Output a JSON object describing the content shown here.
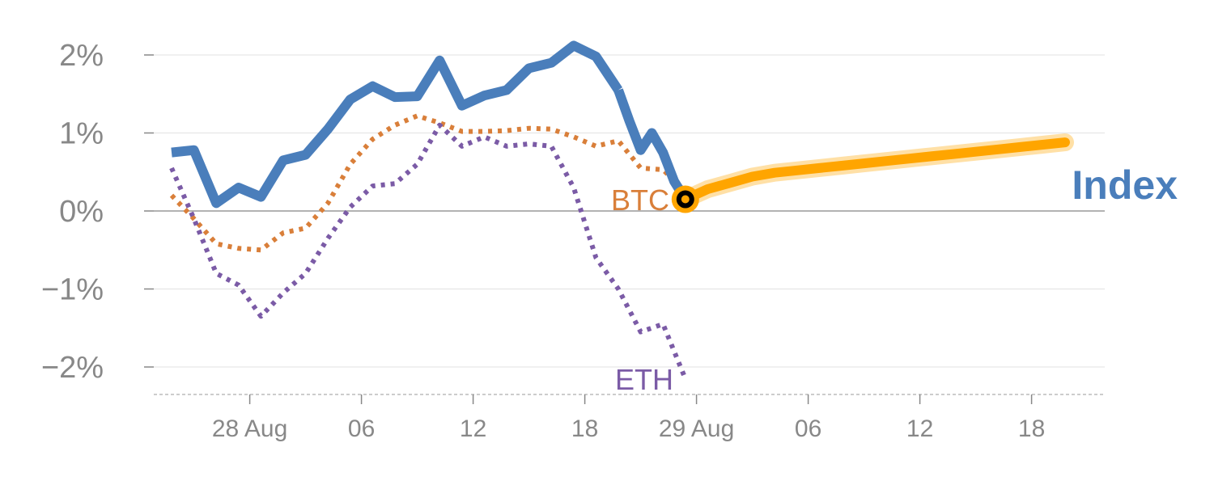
{
  "chart_data": {
    "type": "line",
    "title": "",
    "xlabel": "",
    "ylabel": "",
    "y_unit": "%",
    "ylim": [
      -2.35,
      2.15
    ],
    "grid": true,
    "y_ticks": [
      {
        "value": 2,
        "label": "2%"
      },
      {
        "value": 1,
        "label": "1%"
      },
      {
        "value": 0,
        "label": "0%"
      },
      {
        "value": -1,
        "label": "−1%"
      },
      {
        "value": -2,
        "label": "−2%"
      }
    ],
    "x_ticks": [
      {
        "index": 7,
        "label": "28 Aug"
      },
      {
        "index": 17,
        "label": "06"
      },
      {
        "index": 27,
        "label": "12"
      },
      {
        "index": 37,
        "label": "18"
      },
      {
        "index": 47,
        "label": "29 Aug"
      },
      {
        "index": 57,
        "label": "06"
      },
      {
        "index": 67,
        "label": "12"
      },
      {
        "index": 77,
        "label": "18"
      }
    ],
    "series": [
      {
        "name": "Index",
        "color": "#4a7ebb",
        "style": "solid",
        "x": [
          0,
          2,
          4,
          6,
          8,
          10,
          12,
          14,
          16,
          18,
          20,
          22,
          24,
          26,
          28,
          30,
          32,
          34,
          36,
          38,
          40
        ],
        "values": [
          0.75,
          0.78,
          0.1,
          0.3,
          0.18,
          0.65,
          0.72,
          1.05,
          1.43,
          1.6,
          1.46,
          1.47,
          1.93,
          1.35,
          1.48,
          1.55,
          1.83,
          1.9,
          2.12,
          1.98,
          1.55
        ]
      },
      {
        "name": "Index",
        "color": "#4a7ebb",
        "style": "solid",
        "x": [
          40,
          41,
          42,
          43,
          44,
          45,
          46
        ],
        "values": [
          1.55,
          1.15,
          0.78,
          1.0,
          0.75,
          0.38,
          0.15
        ]
      },
      {
        "name": "BTC",
        "color": "#d97f3a",
        "style": "dotted",
        "x": [
          0,
          2,
          4,
          6,
          8,
          10,
          12,
          14,
          16,
          18,
          20,
          22,
          24,
          26,
          28,
          30,
          32,
          34,
          36,
          38,
          40,
          42,
          44,
          46
        ],
        "values": [
          0.2,
          -0.1,
          -0.42,
          -0.48,
          -0.5,
          -0.28,
          -0.22,
          0.1,
          0.6,
          0.92,
          1.1,
          1.22,
          1.13,
          1.02,
          1.02,
          1.03,
          1.06,
          1.05,
          0.95,
          0.83,
          0.9,
          0.55,
          0.53,
          0.25
        ]
      },
      {
        "name": "ETH",
        "color": "#7b5ba6",
        "style": "dotted",
        "x": [
          0,
          2,
          4,
          6,
          8,
          10,
          12,
          14,
          16,
          18,
          20,
          22,
          24,
          26,
          28,
          30,
          32,
          34,
          36,
          38,
          40,
          42,
          44,
          46
        ],
        "values": [
          0.55,
          -0.1,
          -0.8,
          -0.95,
          -1.35,
          -1.05,
          -0.8,
          -0.35,
          0.05,
          0.32,
          0.35,
          0.6,
          1.1,
          0.83,
          0.95,
          0.83,
          0.86,
          0.83,
          0.3,
          -0.6,
          -1.0,
          -1.55,
          -1.45,
          -2.15
        ]
      },
      {
        "name": "Index",
        "color": "#ffa500",
        "style": "forecast",
        "x": [
          46,
          48,
          50,
          52,
          54,
          56,
          58,
          60,
          62,
          64,
          66,
          68,
          70,
          72,
          74,
          76,
          78,
          80
        ],
        "values": [
          0.15,
          0.28,
          0.36,
          0.44,
          0.49,
          0.52,
          0.55,
          0.58,
          0.61,
          0.64,
          0.67,
          0.7,
          0.73,
          0.76,
          0.79,
          0.82,
          0.85,
          0.88
        ]
      }
    ],
    "labels": {
      "index": "Index",
      "btc": "BTC",
      "eth": "ETH"
    },
    "colors": {
      "index": "#4a7ebb",
      "btc": "#d97f3a",
      "eth": "#7b5ba6",
      "forecast": "#ffa500",
      "grid": "#e6e6e6",
      "zero": "#999999",
      "ticks": "#888888"
    },
    "marker": {
      "index": 46,
      "value": 0.15,
      "color": "#ffa500"
    }
  }
}
